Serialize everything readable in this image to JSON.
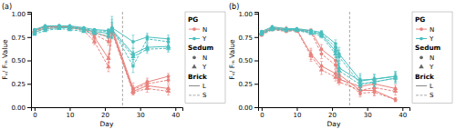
{
  "chart_data": [
    {
      "type": "line",
      "title": "(a)",
      "x_label": "Day",
      "y_label": "Fᵥ/ Fₘ Value",
      "x": [
        0,
        3,
        7,
        10,
        14,
        17,
        21,
        22,
        28,
        32,
        38
      ],
      "xlim": [
        -1,
        42
      ],
      "xticks": [
        0,
        10,
        20,
        30,
        40
      ],
      "ylim": [
        0.0,
        1.02
      ],
      "yticks": [
        {
          "value": 0.0,
          "label": "0.00"
        },
        0.25,
        {
          "value": 0.5,
          "label": "0.50"
        },
        0.75,
        {
          "value": 1.0,
          "label": "1.00"
        }
      ],
      "reference_x": 25,
      "legend": "right",
      "legend_groups": [
        {
          "title": "PG",
          "entries": [
            {
              "label": "N",
              "color": "#E8837E",
              "marker": "circle",
              "line_style": "solid"
            },
            {
              "label": "Y",
              "color": "#4BBFBF",
              "marker": "circle",
              "line_style": "solid"
            }
          ]
        },
        {
          "title": "Sedum",
          "entries": [
            {
              "label": "N",
              "color": "#666666",
              "marker": "circle",
              "line_style": "none"
            },
            {
              "label": "Y",
              "color": "#666666",
              "marker": "triangle",
              "line_style": "none"
            }
          ]
        },
        {
          "title": "Brick",
          "entries": [
            {
              "label": "L",
              "color": "#888888",
              "marker": "none",
              "line_style": "solid"
            },
            {
              "label": "S",
              "color": "#aaaaaa",
              "marker": "none",
              "line_style": "dashed"
            }
          ]
        }
      ],
      "series": [
        {
          "color": "#E8837E",
          "marker": "circle",
          "line_style": "solid",
          "values": [
            0.82,
            0.86,
            0.86,
            0.86,
            0.84,
            0.8,
            0.75,
            0.85,
            0.2,
            0.27,
            0.33
          ],
          "errors": [
            0.01,
            0.01,
            0.01,
            0.01,
            0.01,
            0.02,
            0.04,
            0.03,
            0.06,
            0.04,
            0.03
          ]
        },
        {
          "color": "#E8837E",
          "marker": "circle",
          "line_style": "dashed",
          "values": [
            0.8,
            0.84,
            0.85,
            0.85,
            0.83,
            0.78,
            0.7,
            0.82,
            0.19,
            0.25,
            0.29
          ],
          "errors": [
            0.01,
            0.01,
            0.01,
            0.01,
            0.01,
            0.02,
            0.04,
            0.03,
            0.04,
            0.04,
            0.03
          ]
        },
        {
          "color": "#E8837E",
          "marker": "triangle",
          "line_style": "solid",
          "values": [
            0.82,
            0.86,
            0.86,
            0.86,
            0.84,
            0.75,
            0.52,
            0.82,
            0.17,
            0.23,
            0.2
          ],
          "errors": [
            0.01,
            0.01,
            0.01,
            0.01,
            0.01,
            0.03,
            0.05,
            0.03,
            0.03,
            0.04,
            0.04
          ]
        },
        {
          "color": "#E8837E",
          "marker": "triangle",
          "line_style": "dashed",
          "values": [
            0.81,
            0.85,
            0.86,
            0.85,
            0.82,
            0.7,
            0.43,
            0.8,
            0.16,
            0.2,
            0.17
          ],
          "errors": [
            0.01,
            0.01,
            0.01,
            0.01,
            0.01,
            0.03,
            0.05,
            0.03,
            0.03,
            0.04,
            0.04
          ]
        },
        {
          "color": "#4BBFBF",
          "marker": "circle",
          "line_style": "solid",
          "values": [
            0.83,
            0.87,
            0.87,
            0.87,
            0.85,
            0.83,
            0.82,
            0.85,
            0.7,
            0.75,
            0.73
          ],
          "errors": [
            0.01,
            0.01,
            0.01,
            0.01,
            0.01,
            0.01,
            0.02,
            0.12,
            0.07,
            0.04,
            0.04
          ]
        },
        {
          "color": "#4BBFBF",
          "marker": "circle",
          "line_style": "dashed",
          "values": [
            0.82,
            0.86,
            0.87,
            0.86,
            0.84,
            0.82,
            0.81,
            0.84,
            0.44,
            0.73,
            0.7
          ],
          "errors": [
            0.01,
            0.01,
            0.01,
            0.01,
            0.01,
            0.01,
            0.02,
            0.1,
            0.07,
            0.04,
            0.04
          ]
        },
        {
          "color": "#4BBFBF",
          "marker": "triangle",
          "line_style": "solid",
          "values": [
            0.8,
            0.84,
            0.85,
            0.85,
            0.83,
            0.81,
            0.79,
            0.83,
            0.57,
            0.64,
            0.65
          ],
          "errors": [
            0.01,
            0.01,
            0.01,
            0.01,
            0.01,
            0.01,
            0.02,
            0.08,
            0.06,
            0.04,
            0.04
          ]
        },
        {
          "color": "#4BBFBF",
          "marker": "triangle",
          "line_style": "dashed",
          "values": [
            0.78,
            0.82,
            0.84,
            0.83,
            0.81,
            0.79,
            0.76,
            0.82,
            0.54,
            0.62,
            0.63
          ],
          "errors": [
            0.01,
            0.01,
            0.01,
            0.01,
            0.01,
            0.01,
            0.02,
            0.08,
            0.06,
            0.04,
            0.04
          ]
        }
      ]
    },
    {
      "type": "line",
      "title": "(b)",
      "x_label": "Day",
      "y_label": "Fᵥ/ Fₘ Value",
      "x": [
        0,
        3,
        7,
        10,
        14,
        17,
        21,
        22,
        28,
        32,
        38
      ],
      "xlim": [
        -1,
        42
      ],
      "xticks": [
        0,
        10,
        20,
        30,
        40
      ],
      "ylim": [
        0.0,
        1.02
      ],
      "yticks": [
        {
          "value": 0.0,
          "label": "0.00"
        },
        0.25,
        {
          "value": 0.5,
          "label": "0.50"
        },
        0.75,
        {
          "value": 1.0,
          "label": "1.00"
        }
      ],
      "reference_x": 25,
      "legend": "right",
      "legend_groups": [
        {
          "title": "PG",
          "entries": [
            {
              "label": "N",
              "color": "#E8837E",
              "marker": "circle",
              "line_style": "solid"
            },
            {
              "label": "Y",
              "color": "#4BBFBF",
              "marker": "circle",
              "line_style": "solid"
            }
          ]
        },
        {
          "title": "Sedum",
          "entries": [
            {
              "label": "N",
              "color": "#666666",
              "marker": "circle",
              "line_style": "none"
            },
            {
              "label": "Y",
              "color": "#666666",
              "marker": "triangle",
              "line_style": "none"
            }
          ]
        },
        {
          "title": "Brick",
          "entries": [
            {
              "label": "L",
              "color": "#888888",
              "marker": "none",
              "line_style": "solid"
            },
            {
              "label": "S",
              "color": "#aaaaaa",
              "marker": "none",
              "line_style": "dashed"
            }
          ]
        }
      ],
      "series": [
        {
          "color": "#E8837E",
          "marker": "circle",
          "line_style": "solid",
          "values": [
            0.78,
            0.84,
            0.82,
            0.83,
            0.82,
            0.62,
            0.5,
            0.35,
            0.18,
            0.18,
            0.08
          ],
          "errors": [
            0.01,
            0.01,
            0.01,
            0.01,
            0.02,
            0.05,
            0.04,
            0.02,
            0.05,
            0.05,
            0.02
          ]
        },
        {
          "color": "#E8837E",
          "marker": "circle",
          "line_style": "dashed",
          "values": [
            0.77,
            0.83,
            0.81,
            0.82,
            0.8,
            0.57,
            0.45,
            0.32,
            0.15,
            0.16,
            0.08
          ],
          "errors": [
            0.01,
            0.01,
            0.01,
            0.01,
            0.02,
            0.05,
            0.04,
            0.02,
            0.04,
            0.04,
            0.02
          ]
        },
        {
          "color": "#E8837E",
          "marker": "triangle",
          "line_style": "solid",
          "values": [
            0.8,
            0.85,
            0.84,
            0.83,
            0.57,
            0.44,
            0.36,
            0.3,
            0.22,
            0.25,
            0.2
          ],
          "errors": [
            0.01,
            0.01,
            0.01,
            0.02,
            0.06,
            0.05,
            0.04,
            0.03,
            0.05,
            0.05,
            0.04
          ]
        },
        {
          "color": "#E8837E",
          "marker": "triangle",
          "line_style": "dashed",
          "values": [
            0.79,
            0.84,
            0.83,
            0.82,
            0.55,
            0.4,
            0.32,
            0.27,
            0.18,
            0.21,
            0.17
          ],
          "errors": [
            0.01,
            0.01,
            0.01,
            0.02,
            0.06,
            0.05,
            0.04,
            0.03,
            0.05,
            0.04,
            0.04
          ]
        },
        {
          "color": "#4BBFBF",
          "marker": "circle",
          "line_style": "solid",
          "values": [
            0.81,
            0.86,
            0.84,
            0.84,
            0.82,
            0.8,
            0.68,
            0.57,
            0.29,
            0.3,
            0.33
          ],
          "errors": [
            0.01,
            0.01,
            0.01,
            0.01,
            0.01,
            0.02,
            0.04,
            0.07,
            0.07,
            0.05,
            0.05
          ]
        },
        {
          "color": "#4BBFBF",
          "marker": "circle",
          "line_style": "dashed",
          "values": [
            0.8,
            0.85,
            0.83,
            0.83,
            0.81,
            0.79,
            0.64,
            0.54,
            0.25,
            0.27,
            0.31
          ],
          "errors": [
            0.01,
            0.01,
            0.01,
            0.01,
            0.01,
            0.02,
            0.04,
            0.07,
            0.06,
            0.05,
            0.05
          ]
        },
        {
          "color": "#4BBFBF",
          "marker": "triangle",
          "line_style": "solid",
          "values": [
            0.79,
            0.84,
            0.83,
            0.83,
            0.8,
            0.78,
            0.6,
            0.42,
            0.28,
            0.3,
            0.33
          ],
          "errors": [
            0.01,
            0.01,
            0.01,
            0.01,
            0.01,
            0.02,
            0.04,
            0.07,
            0.06,
            0.05,
            0.05
          ]
        },
        {
          "color": "#4BBFBF",
          "marker": "triangle",
          "line_style": "dashed",
          "values": [
            0.78,
            0.83,
            0.82,
            0.82,
            0.79,
            0.76,
            0.57,
            0.39,
            0.24,
            0.27,
            0.31
          ],
          "errors": [
            0.01,
            0.01,
            0.01,
            0.01,
            0.01,
            0.02,
            0.04,
            0.07,
            0.06,
            0.05,
            0.05
          ]
        }
      ]
    }
  ]
}
